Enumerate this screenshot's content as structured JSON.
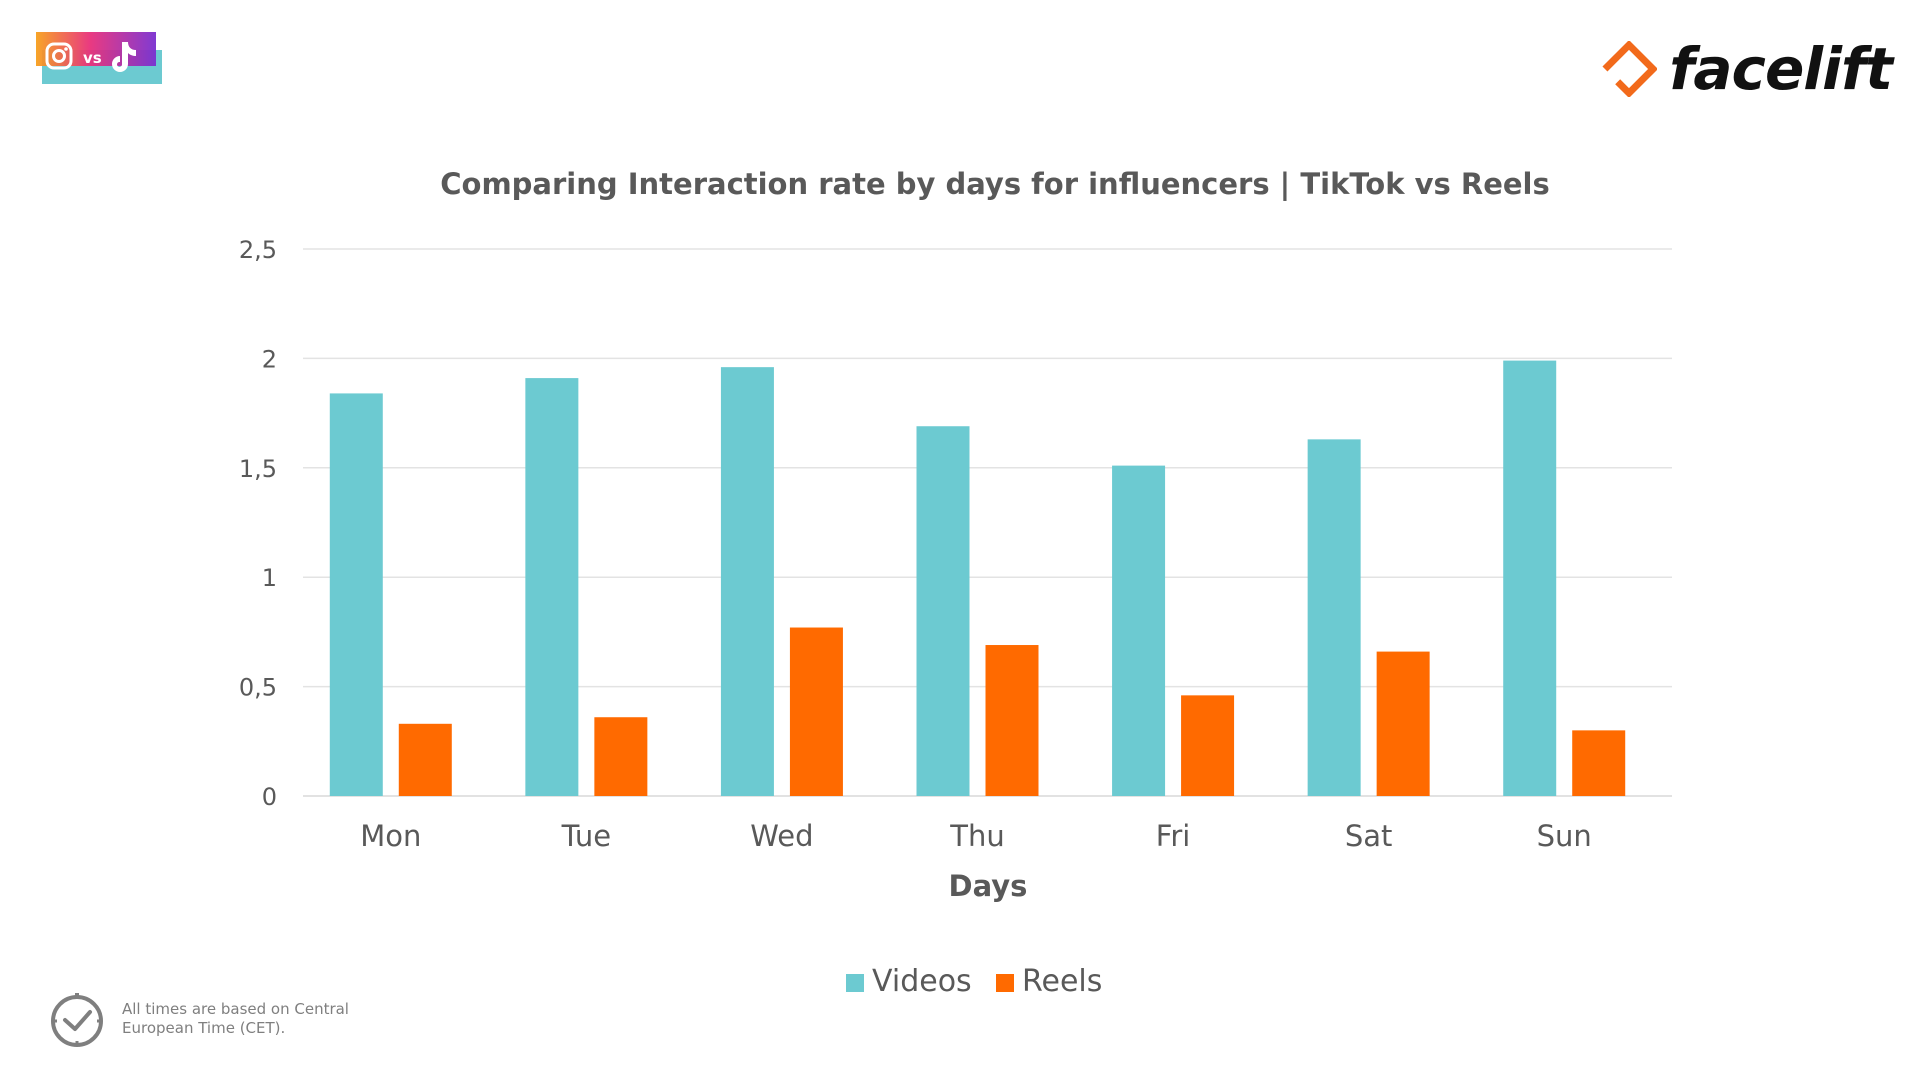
{
  "header": {
    "badge_text": "vs",
    "brand_name": "facelift"
  },
  "colors": {
    "videos": "#6ccad1",
    "reels": "#ff6a00",
    "brand_orange": "#f26a1b",
    "gridline": "#e3e3e3",
    "text": "#595959"
  },
  "icons": {
    "badge_left": "instagram-icon",
    "badge_right": "tiktok-icon",
    "footer": "clock-icon"
  },
  "chart_data": {
    "type": "bar",
    "title": "Comparing Interaction rate by days for influencers | TikTok vs Reels",
    "xlabel": "Days",
    "ylabel": "",
    "categories": [
      "Mon",
      "Tue",
      "Wed",
      "Thu",
      "Fri",
      "Sat",
      "Sun"
    ],
    "series": [
      {
        "name": "Videos",
        "values": [
          1.84,
          1.91,
          1.96,
          1.69,
          1.51,
          1.63,
          1.99
        ]
      },
      {
        "name": "Reels",
        "values": [
          0.33,
          0.36,
          0.77,
          0.69,
          0.46,
          0.66,
          0.3
        ]
      }
    ],
    "ylim": [
      0,
      2.5
    ],
    "yticks": [
      "0",
      "0,5",
      "1",
      "1,5",
      "2",
      "2,5"
    ],
    "grid": true,
    "legend_position": "bottom"
  },
  "footer": {
    "note_line1": "All times are based on Central",
    "note_line2": "European Time (CET)."
  }
}
